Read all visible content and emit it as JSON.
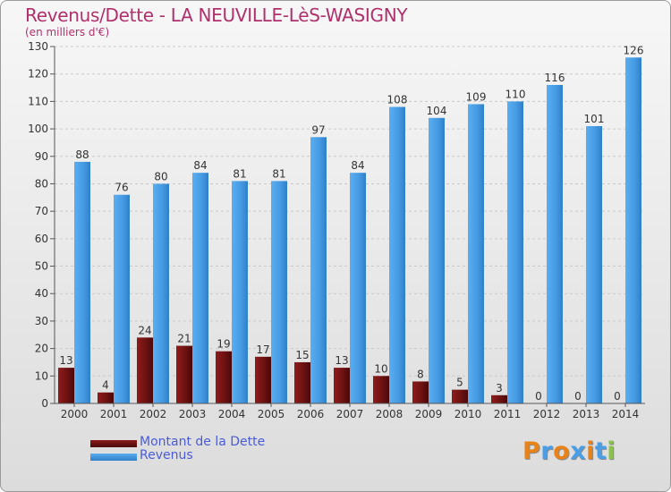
{
  "header": {
    "title": "Revenus/Dette - LA NEUVILLE-LèS-WASIGNY",
    "subtitle": "(en milliers d'€)"
  },
  "legend": {
    "items": [
      {
        "label": "Montant de la Dette",
        "color": "#8b1a1a"
      },
      {
        "label": "Revenus",
        "color": "#4a9ee6"
      }
    ]
  },
  "brand": {
    "name": "Proxiti",
    "letter_colors": [
      "#e8831a",
      "#4a9ee6",
      "#e8831a",
      "#4a9ee6",
      "#e8831a",
      "#4a9ee6",
      "#8bc34a"
    ]
  },
  "chart_data": {
    "type": "bar",
    "categories": [
      "2000",
      "2001",
      "2002",
      "2003",
      "2004",
      "2005",
      "2006",
      "2007",
      "2008",
      "2009",
      "2010",
      "2011",
      "2012",
      "2013",
      "2014"
    ],
    "series": [
      {
        "name": "Montant de la Dette",
        "values": [
          13,
          4,
          24,
          21,
          19,
          17,
          15,
          13,
          10,
          8,
          5,
          3,
          0,
          0,
          0
        ],
        "color": "#8b1a1a"
      },
      {
        "name": "Revenus",
        "values": [
          88,
          76,
          80,
          84,
          81,
          81,
          97,
          84,
          108,
          104,
          109,
          110,
          116,
          101,
          126
        ],
        "color": "#4a9ee6"
      }
    ],
    "ylim": [
      0,
      130
    ],
    "yticks": [
      0,
      10,
      20,
      30,
      40,
      50,
      60,
      70,
      80,
      90,
      100,
      110,
      120,
      130
    ],
    "grid": true,
    "legend_position": "bottom-left"
  }
}
